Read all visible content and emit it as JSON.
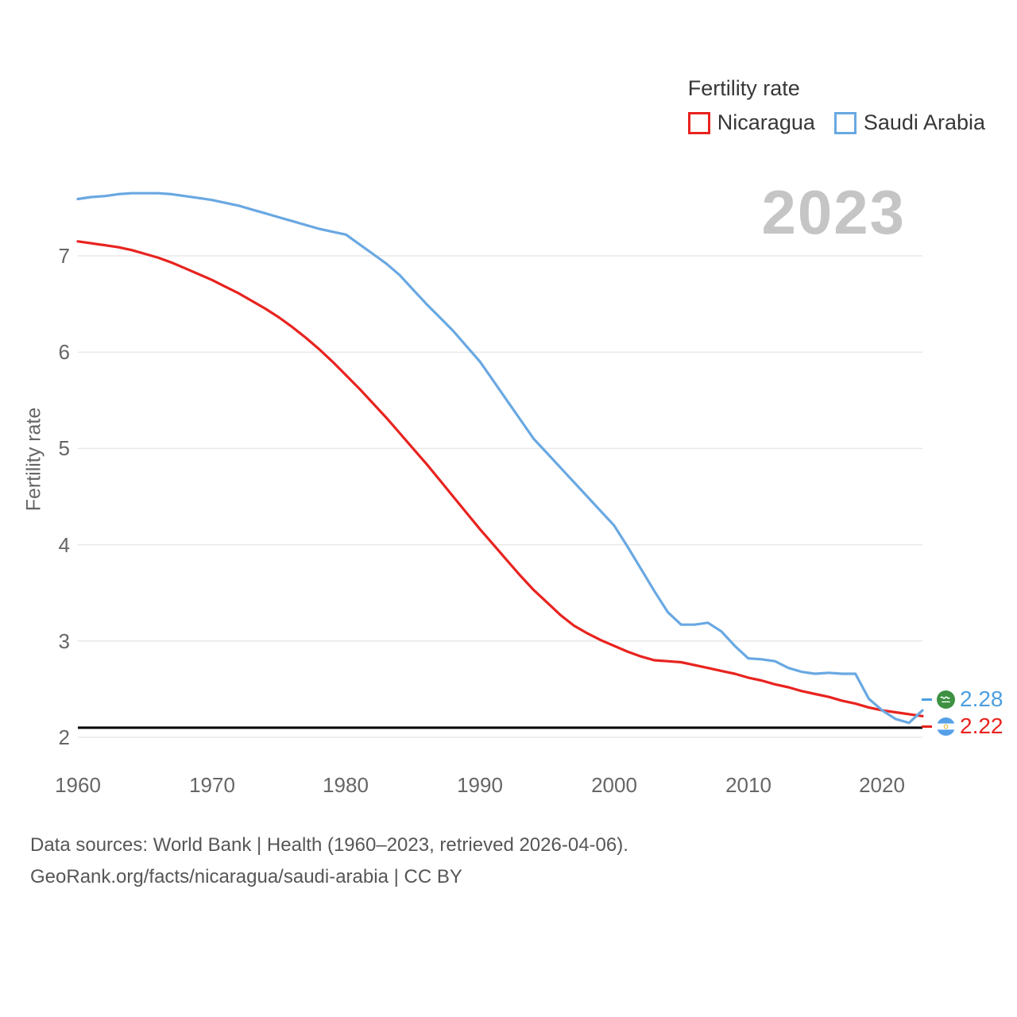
{
  "watermark": "2023",
  "legend": {
    "title": "Fertility rate",
    "items": [
      {
        "label": "Nicaragua",
        "color": "#e8231f"
      },
      {
        "label": "Saudi Arabia",
        "color": "#69a8e2"
      }
    ]
  },
  "end_labels": [
    {
      "country": "Saudi Arabia",
      "value": "2.28",
      "color": "#4d9fe0",
      "flag": "saudi-arabia-flag-icon"
    },
    {
      "country": "Nicaragua",
      "value": "2.22",
      "color": "#e8231f",
      "flag": "nicaragua-flag-icon"
    }
  ],
  "footer": {
    "line1": "Data sources: World Bank | Health (1960–2023, retrieved 2026-04-06).",
    "line2": "GeoRank.org/facts/nicaragua/saudi-arabia | CC BY"
  },
  "chart_data": {
    "type": "line",
    "title": "Fertility rate",
    "xlabel": "",
    "ylabel": "Fertility rate",
    "xlim": [
      1960,
      2023
    ],
    "ylim": [
      2,
      7.8
    ],
    "xticks": [
      1960,
      1970,
      1980,
      1990,
      2000,
      2010,
      2020
    ],
    "yticks": [
      2,
      3,
      4,
      5,
      6,
      7
    ],
    "grid": "horizontal",
    "legend_position": "top-right",
    "reference_line": {
      "value": 2.1,
      "color": "#000000"
    },
    "x": [
      1960,
      1961,
      1962,
      1963,
      1964,
      1965,
      1966,
      1967,
      1968,
      1969,
      1970,
      1971,
      1972,
      1973,
      1974,
      1975,
      1976,
      1977,
      1978,
      1979,
      1980,
      1981,
      1982,
      1983,
      1984,
      1985,
      1986,
      1987,
      1988,
      1989,
      1990,
      1991,
      1992,
      1993,
      1994,
      1995,
      1996,
      1997,
      1998,
      1999,
      2000,
      2001,
      2002,
      2003,
      2004,
      2005,
      2006,
      2007,
      2008,
      2009,
      2010,
      2011,
      2012,
      2013,
      2014,
      2015,
      2016,
      2017,
      2018,
      2019,
      2020,
      2021,
      2022,
      2023
    ],
    "series": [
      {
        "name": "Nicaragua",
        "color": "#e8231f",
        "end_value": 2.22,
        "values": [
          7.15,
          7.13,
          7.11,
          7.09,
          7.06,
          7.02,
          6.98,
          6.93,
          6.87,
          6.81,
          6.75,
          6.68,
          6.61,
          6.53,
          6.45,
          6.36,
          6.26,
          6.15,
          6.03,
          5.9,
          5.76,
          5.62,
          5.47,
          5.32,
          5.16,
          5.0,
          4.84,
          4.67,
          4.5,
          4.33,
          4.16,
          4.0,
          3.84,
          3.68,
          3.53,
          3.4,
          3.27,
          3.16,
          3.08,
          3.01,
          2.95,
          2.89,
          2.84,
          2.8,
          2.79,
          2.78,
          2.75,
          2.72,
          2.69,
          2.66,
          2.62,
          2.59,
          2.55,
          2.52,
          2.48,
          2.45,
          2.42,
          2.38,
          2.35,
          2.31,
          2.28,
          2.26,
          2.24,
          2.22
        ]
      },
      {
        "name": "Saudi Arabia",
        "color": "#69a8e2",
        "end_value": 2.28,
        "values": [
          7.59,
          7.61,
          7.62,
          7.64,
          7.65,
          7.65,
          7.65,
          7.64,
          7.62,
          7.6,
          7.58,
          7.55,
          7.52,
          7.48,
          7.44,
          7.4,
          7.36,
          7.32,
          7.28,
          7.25,
          7.22,
          7.12,
          7.02,
          6.92,
          6.8,
          6.65,
          6.5,
          6.36,
          6.22,
          6.06,
          5.9,
          5.7,
          5.5,
          5.3,
          5.1,
          4.95,
          4.8,
          4.65,
          4.5,
          4.35,
          4.2,
          3.98,
          3.75,
          3.52,
          3.3,
          3.17,
          3.17,
          3.19,
          3.1,
          2.95,
          2.82,
          2.81,
          2.79,
          2.72,
          2.68,
          2.66,
          2.67,
          2.66,
          2.66,
          2.4,
          2.28,
          2.19,
          2.15,
          2.28
        ]
      }
    ]
  }
}
